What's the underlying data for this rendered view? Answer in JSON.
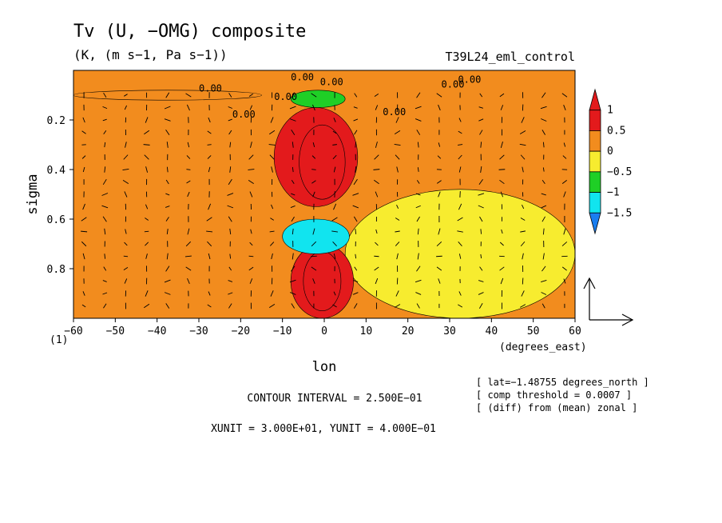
{
  "chart_data": {
    "type": "heatmap",
    "title": "Tv (U, −OMG) composite",
    "subtitle": "(K, (m s−1, Pa s−1))",
    "experiment": "T39L24_eml_control",
    "xlabel": "lon",
    "xunits": "(degrees_east)",
    "ylabel": "sigma",
    "ylabel_index": "(1)",
    "xlim": [
      -60,
      60
    ],
    "ylim": [
      1.0,
      0.0
    ],
    "x_ticks": [
      -60,
      -50,
      -40,
      -30,
      -20,
      -10,
      0,
      10,
      20,
      30,
      40,
      50,
      60
    ],
    "y_ticks": [
      0.2,
      0.4,
      0.6,
      0.8
    ],
    "x_tick_labels": [
      "−60",
      "−50",
      "−40",
      "−30",
      "−20",
      "−10",
      "0",
      "10",
      "20",
      "30",
      "40",
      "50",
      "60"
    ],
    "y_tick_labels": [
      "0.2",
      "0.4",
      "0.6",
      "0.8"
    ],
    "colorbar": {
      "labels": [
        "1",
        "0.5",
        "0",
        "−0.5",
        "−1",
        "−1.5"
      ],
      "levels": [
        1,
        0.5,
        0,
        -0.5,
        -1,
        -1.5
      ],
      "colors": [
        "#e31a1c",
        "#f28c1e",
        "#f7ec2f",
        "#1fcf26",
        "#11e4ef",
        "#1a7ef0"
      ]
    },
    "contour_labels": [
      "0.00",
      "0.00",
      "0.00",
      "0.00",
      "0.00",
      "0.00",
      "0.00",
      "0.00"
    ],
    "info_lines": [
      "[ lat=−1.48755 degrees_north ]",
      "[ comp threshold = 0.0007 ]",
      "[ (diff) from (mean) zonal ]"
    ],
    "contour_interval_text": "CONTOUR INTERVAL = 2.500E−01",
    "unit_text": "XUNIT = 3.000E+01, YUNIT = 4.000E−01",
    "background_level": 0,
    "anomalies": [
      {
        "lon_range": [
          -6,
          5
        ],
        "sigma_range": [
          0.22,
          0.52
        ],
        "value": 1.1
      },
      {
        "lon_range": [
          -12,
          8
        ],
        "sigma_range": [
          0.15,
          0.55
        ],
        "value": 0.6
      },
      {
        "lon_range": [
          -5,
          4
        ],
        "sigma_range": [
          0.73,
          0.97
        ],
        "value": 1.0
      },
      {
        "lon_range": [
          -8,
          7
        ],
        "sigma_range": [
          0.7,
          1.0
        ],
        "value": 0.6
      },
      {
        "lon_range": [
          -10,
          6
        ],
        "sigma_range": [
          0.6,
          0.74
        ],
        "value": -1.1
      },
      {
        "lon_range": [
          -8,
          5
        ],
        "sigma_range": [
          0.08,
          0.15
        ],
        "value": -0.9
      },
      {
        "lon_range": [
          -60,
          -15
        ],
        "sigma_range": [
          0.08,
          0.12
        ],
        "value": 0.3
      },
      {
        "lon_range": [
          5,
          60
        ],
        "sigma_range": [
          0.48,
          1.0
        ],
        "value": -0.2
      }
    ]
  }
}
